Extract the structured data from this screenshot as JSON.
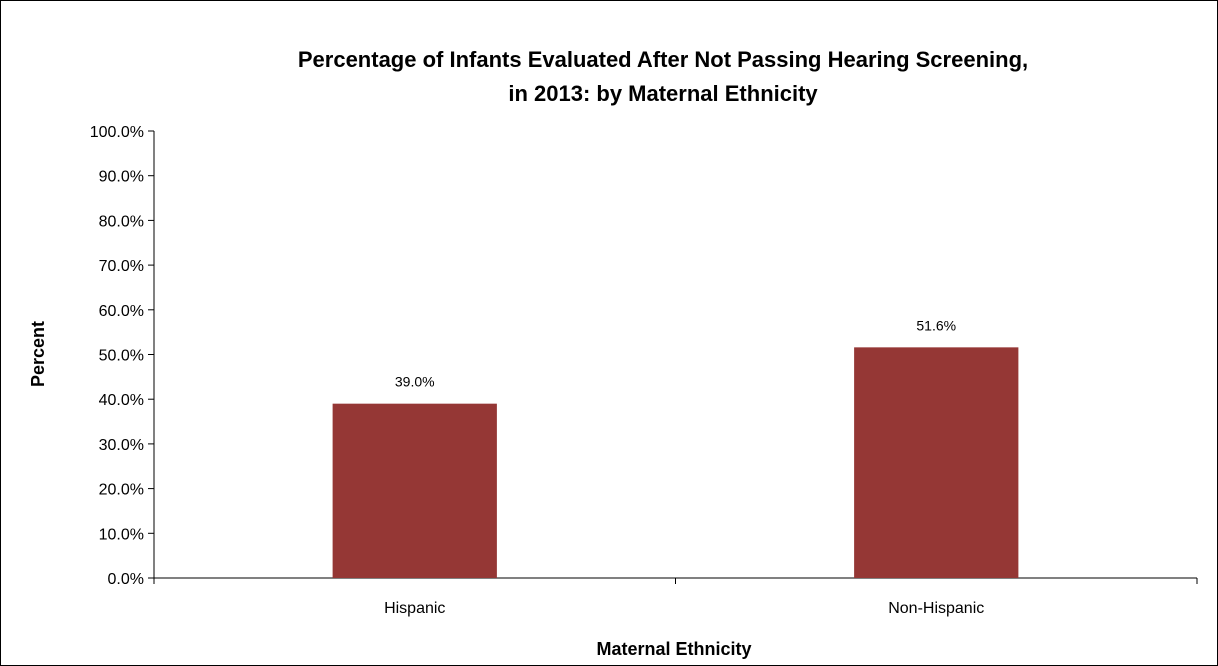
{
  "chart_data": {
    "type": "bar",
    "title": "Percentage of Infants Evaluated After Not Passing Hearing Screening,",
    "subtitle": "in 2013: by Maternal Ethnicity",
    "xlabel": "Maternal Ethnicity",
    "ylabel": "Percent",
    "categories": [
      "Hispanic",
      "Non-Hispanic"
    ],
    "values": [
      39.0,
      51.6
    ],
    "data_labels": [
      "39.0%",
      "51.6%"
    ],
    "ylim": [
      0,
      100
    ],
    "yticks": [
      0,
      10,
      20,
      30,
      40,
      50,
      60,
      70,
      80,
      90,
      100
    ],
    "ytick_labels": [
      "0.0%",
      "10.0%",
      "20.0%",
      "30.0%",
      "40.0%",
      "50.0%",
      "60.0%",
      "70.0%",
      "80.0%",
      "90.0%",
      "100.0%"
    ],
    "grid": false,
    "legend": "none",
    "bar_color": "#953735"
  }
}
